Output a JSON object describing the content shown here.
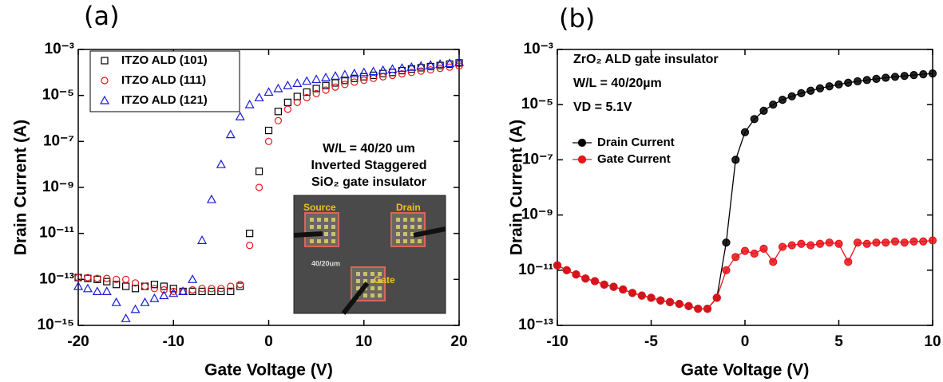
{
  "chart_data": [
    {
      "type": "scatter",
      "panel_label": "(a)",
      "x_label": "Gate Voltage (V)",
      "y_label": "Drain Current (A)",
      "log_y": true,
      "xlim": [
        -20,
        20
      ],
      "xticks": [
        -20,
        -10,
        0,
        10,
        20
      ],
      "ylim": [
        1e-15,
        0.001
      ],
      "yticks": [
        {
          "value": 1e-15,
          "label": "10⁻¹⁵"
        },
        {
          "value": 1e-13,
          "label": "10⁻¹³"
        },
        {
          "value": 1e-11,
          "label": "10⁻¹¹"
        },
        {
          "value": 1e-09,
          "label": "10⁻⁹"
        },
        {
          "value": 1e-07,
          "label": "10⁻⁷"
        },
        {
          "value": 1e-05,
          "label": "10⁻⁵"
        },
        {
          "value": 0.001,
          "label": "10⁻³"
        }
      ],
      "legend": "upper left",
      "x": [
        -20,
        -19,
        -18,
        -17,
        -16,
        -15,
        -14,
        -13,
        -12,
        -11,
        -10,
        -9,
        -8,
        -7,
        -6,
        -5,
        -4,
        -3,
        -2,
        -1,
        0,
        1,
        2,
        3,
        4,
        5,
        6,
        7,
        8,
        9,
        10,
        11,
        12,
        13,
        14,
        15,
        16,
        17,
        18,
        19,
        20
      ],
      "series": [
        {
          "name": "ITZO ALD (101)",
          "color": "#000000",
          "marker": "square",
          "values": [
            1.2e-13,
            1.1e-13,
            1e-13,
            8e-14,
            6e-14,
            5e-14,
            4e-14,
            5e-14,
            6e-14,
            5e-14,
            4e-14,
            3e-14,
            3e-14,
            3e-14,
            3e-14,
            3e-14,
            3e-14,
            5e-14,
            1e-11,
            5e-09,
            3e-07,
            2e-06,
            5e-06,
            9e-06,
            1.4e-05,
            2e-05,
            2.7e-05,
            3.5e-05,
            4.5e-05,
            5.5e-05,
            6.5e-05,
            7.5e-05,
            9e-05,
            0.0001,
            0.00012,
            0.00014,
            0.00016,
            0.00018,
            0.0002,
            0.00023,
            0.00026
          ]
        },
        {
          "name": "ITZO ALD (111)",
          "color": "#e8141b",
          "marker": "circle",
          "values": [
            1.2e-13,
            1.2e-13,
            1.1e-13,
            1.1e-13,
            1e-13,
            1e-13,
            7e-14,
            5e-14,
            4e-14,
            3.5e-14,
            3e-14,
            3e-14,
            3.5e-14,
            4e-14,
            4e-14,
            4e-14,
            5e-14,
            6e-14,
            3e-12,
            1e-09,
            1e-07,
            8e-07,
            2.5e-06,
            5e-06,
            8e-06,
            1.2e-05,
            1.7e-05,
            2.3e-05,
            3e-05,
            3.8e-05,
            4.6e-05,
            5.5e-05,
            6.5e-05,
            7.5e-05,
            8.7e-05,
            0.0001,
            0.000115,
            0.00013,
            0.00015,
            0.00017,
            0.00019
          ]
        },
        {
          "name": "ITZO ALD (121)",
          "color": "#1a1adc",
          "marker": "triangle",
          "values": [
            5e-14,
            4e-14,
            3e-14,
            3e-14,
            1e-14,
            2e-15,
            5e-15,
            1e-14,
            1.5e-14,
            2e-14,
            2.5e-14,
            3e-14,
            1e-13,
            5e-12,
            3e-10,
            1e-08,
            2e-07,
            1.2e-06,
            4e-06,
            8e-06,
            1.4e-05,
            2e-05,
            2.7e-05,
            3.4e-05,
            4.2e-05,
            5e-05,
            6e-05,
            7e-05,
            8e-05,
            9e-05,
            0.0001,
            0.00011,
            0.000125,
            0.00014,
            0.000155,
            0.00017,
            0.00019,
            0.00021,
            0.00023,
            0.00025,
            0.00028
          ]
        }
      ],
      "annotations": [
        "W/L = 40/20 um",
        "Inverted Staggered",
        "SiO₂ gate insulator"
      ],
      "inset_labels": [
        "Source",
        "Drain",
        "40/20um",
        "Gate"
      ]
    },
    {
      "type": "line",
      "panel_label": "(b)",
      "x_label": "Gate Voltage (V)",
      "y_label": "Drain Current (A)",
      "log_y": true,
      "xlim": [
        -10,
        10
      ],
      "xticks": [
        -10,
        -5,
        0,
        5,
        10
      ],
      "ylim": [
        1e-13,
        0.001
      ],
      "yticks": [
        {
          "value": 1e-13,
          "label": "10⁻¹³"
        },
        {
          "value": 1e-11,
          "label": "10⁻¹¹"
        },
        {
          "value": 1e-09,
          "label": "10⁻⁹"
        },
        {
          "value": 1e-07,
          "label": "10⁻⁷"
        },
        {
          "value": 1e-05,
          "label": "10⁻⁵"
        },
        {
          "value": 0.001,
          "label": "10⁻³"
        }
      ],
      "legend": "upper left",
      "x": [
        -10,
        -9.5,
        -9,
        -8.5,
        -8,
        -7.5,
        -7,
        -6.5,
        -6,
        -5.5,
        -5,
        -4.5,
        -4,
        -3.5,
        -3,
        -2.5,
        -2,
        -1.5,
        -1,
        -0.5,
        0,
        0.5,
        1,
        1.5,
        2,
        2.5,
        3,
        3.5,
        4,
        4.5,
        5,
        5.5,
        6,
        6.5,
        7,
        7.5,
        8,
        8.5,
        9,
        9.5,
        10
      ],
      "series": [
        {
          "name": "Drain Current",
          "color": "#000000",
          "marker": "circle",
          "values": [
            1.5e-11,
            1e-11,
            7e-12,
            5e-12,
            4e-12,
            3e-12,
            2.5e-12,
            2e-12,
            1.5e-12,
            1.2e-12,
            1e-12,
            8e-13,
            7e-13,
            6e-13,
            5e-13,
            4e-13,
            4e-13,
            1e-12,
            1e-10,
            1e-07,
            1e-06,
            3e-06,
            6e-06,
            1e-05,
            1.5e-05,
            2e-05,
            2.6e-05,
            3.2e-05,
            3.9e-05,
            4.6e-05,
            5.4e-05,
            6.2e-05,
            7e-05,
            7.8e-05,
            8.6e-05,
            9.4e-05,
            0.000102,
            0.00011,
            0.000118,
            0.000126,
            0.000135
          ]
        },
        {
          "name": "Gate Current",
          "color": "#e8141b",
          "marker": "circle",
          "values": [
            1.5e-11,
            1e-11,
            7e-12,
            5e-12,
            4e-12,
            3e-12,
            2.5e-12,
            2e-12,
            1.5e-12,
            1.2e-12,
            1e-12,
            8e-13,
            7e-13,
            6e-13,
            5e-13,
            4e-13,
            4e-13,
            1e-12,
            1e-11,
            3e-11,
            5e-11,
            4e-11,
            6e-11,
            2e-11,
            7e-11,
            8e-11,
            9e-11,
            8e-11,
            9e-11,
            1e-10,
            9e-11,
            2e-11,
            1e-10,
            9e-11,
            1e-10,
            1e-10,
            1.1e-10,
            1e-10,
            1.1e-10,
            1.1e-10,
            1.2e-10
          ]
        }
      ],
      "annotations": [
        "ZrO₂ ALD gate insulator",
        "W/L = 40/20µm",
        "VD = 5.1V"
      ]
    }
  ]
}
